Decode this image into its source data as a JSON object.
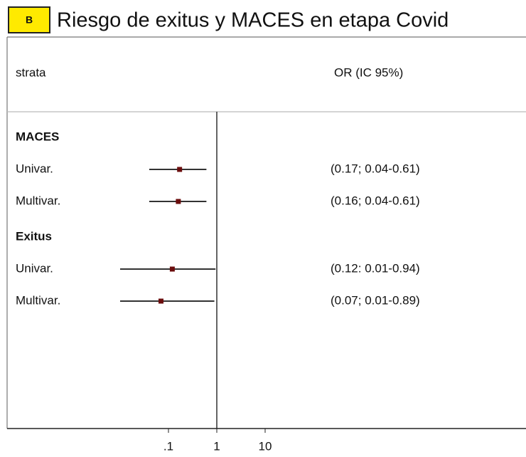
{
  "chart_data": {
    "type": "forest",
    "badge": "B",
    "title": "Riesgo de exitus y MACES en etapa Covid",
    "columns": [
      "strata",
      "OR (IC 95%)"
    ],
    "log_scale": true,
    "xlim": [
      0.01,
      100
    ],
    "xticks": [
      {
        "value": 0.1,
        "label": ".1"
      },
      1,
      10
    ],
    "reference": 1,
    "point_color": "#6b0d0d",
    "line_color": "#333333",
    "groups": [
      {
        "name": "MACES",
        "rows": [
          {
            "label": "Univar.",
            "values": [
              0.17,
              0.04,
              0.61
            ],
            "value_labels": "(0.17; 0.04-0.61)"
          },
          {
            "label": "Multivar.",
            "values": [
              0.16,
              0.04,
              0.61
            ],
            "value_labels": "(0.16; 0.04-0.61)"
          }
        ]
      },
      {
        "name": "Exitus",
        "rows": [
          {
            "label": "Univar.",
            "values": [
              0.12,
              0.01,
              0.94
            ],
            "value_labels": "(0.12: 0.01-0.94)"
          },
          {
            "label": "Multivar.",
            "values": [
              0.07,
              0.01,
              0.89
            ],
            "value_labels": "(0.07; 0.01-0.89)"
          }
        ]
      }
    ]
  }
}
